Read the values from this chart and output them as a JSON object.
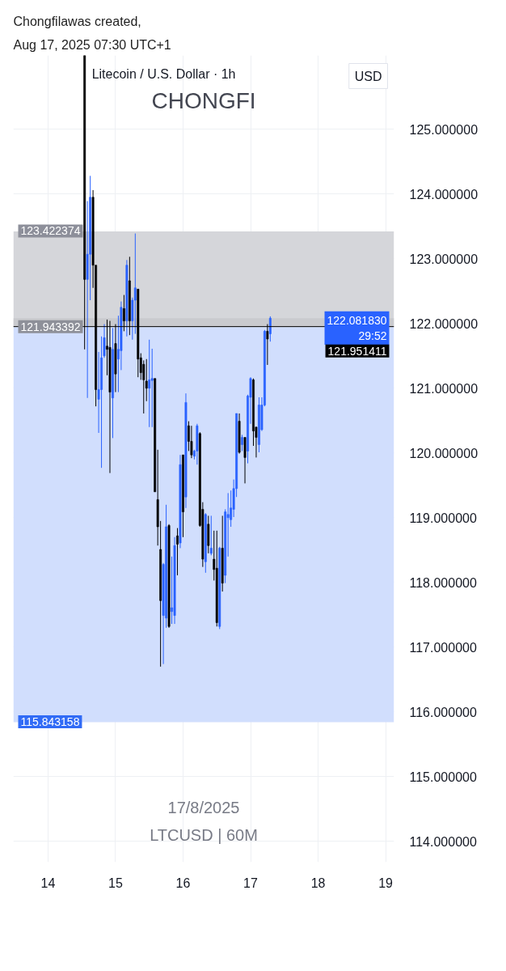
{
  "chart_data": {
    "type": "candlestick",
    "title": "Litecoin / U.S. Dollar · 1h",
    "ylabel": "USD",
    "x": [
      "2025-08-14T13:00",
      "2025-08-14T14:00",
      "2025-08-14T15:00",
      "2025-08-14T16:00",
      "2025-08-14T17:00",
      "2025-08-14T18:00",
      "2025-08-14T19:00",
      "2025-08-14T20:00",
      "2025-08-14T21:00",
      "2025-08-14T22:00",
      "2025-08-14T23:00",
      "2025-08-15T00:00",
      "2025-08-15T01:00",
      "2025-08-15T02:00",
      "2025-08-15T03:00",
      "2025-08-15T04:00",
      "2025-08-15T05:00",
      "2025-08-15T06:00",
      "2025-08-15T07:00",
      "2025-08-15T08:00",
      "2025-08-15T09:00",
      "2025-08-15T10:00",
      "2025-08-15T11:00",
      "2025-08-15T12:00",
      "2025-08-15T13:00",
      "2025-08-15T14:00",
      "2025-08-15T15:00",
      "2025-08-15T16:00",
      "2025-08-15T17:00",
      "2025-08-15T18:00",
      "2025-08-15T19:00",
      "2025-08-15T20:00",
      "2025-08-15T21:00",
      "2025-08-15T22:00",
      "2025-08-15T23:00",
      "2025-08-16T00:00",
      "2025-08-16T01:00",
      "2025-08-16T02:00",
      "2025-08-16T03:00",
      "2025-08-16T04:00",
      "2025-08-16T05:00",
      "2025-08-16T06:00",
      "2025-08-16T07:00",
      "2025-08-16T08:00",
      "2025-08-16T09:00",
      "2025-08-16T10:00",
      "2025-08-16T11:00",
      "2025-08-16T12:00",
      "2025-08-16T13:00",
      "2025-08-16T14:00",
      "2025-08-16T15:00",
      "2025-08-16T16:00",
      "2025-08-16T17:00",
      "2025-08-16T18:00",
      "2025-08-16T19:00",
      "2025-08-16T20:00",
      "2025-08-16T21:00",
      "2025-08-16T22:00",
      "2025-08-16T23:00",
      "2025-08-17T00:00",
      "2025-08-17T01:00",
      "2025-08-17T02:00",
      "2025-08-17T03:00",
      "2025-08-17T04:00",
      "2025-08-17T05:00",
      "2025-08-17T06:00",
      "2025-08-17T07:00"
    ],
    "ohlc": [
      [
        126.14,
        126.14,
        121.6,
        122.68
      ],
      [
        122.68,
        123.89,
        120.85,
        123.07
      ],
      [
        123.07,
        124.28,
        122.36,
        123.95
      ],
      [
        123.95,
        124.06,
        122.55,
        122.9
      ],
      [
        122.9,
        122.9,
        120.72,
        120.98
      ],
      [
        120.83,
        121.56,
        120.31,
        120.98
      ],
      [
        120.98,
        121.8,
        119.77,
        121.47
      ],
      [
        121.5,
        121.99,
        121.47,
        121.78
      ],
      [
        121.65,
        122.06,
        121.2,
        121.6
      ],
      [
        121.63,
        122.04,
        119.69,
        120.94
      ],
      [
        120.85,
        121.93,
        120.23,
        121.6
      ],
      [
        121.69,
        121.99,
        120.94,
        121.22
      ],
      [
        121.45,
        122.12,
        120.94,
        121.6
      ],
      [
        121.58,
        122.34,
        121.28,
        122.25
      ],
      [
        122.23,
        122.44,
        121.88,
        122.04
      ],
      [
        122.04,
        122.98,
        121.8,
        122.9
      ],
      [
        122.66,
        123.03,
        121.82,
        122.04
      ],
      [
        122.04,
        122.4,
        121.75,
        122.36
      ],
      [
        122.36,
        123.39,
        121.84,
        122.55
      ],
      [
        122.53,
        122.53,
        121.17,
        121.45
      ],
      [
        121.47,
        121.54,
        121.13,
        121.24
      ],
      [
        121.37,
        121.43,
        120.61,
        121.13
      ],
      [
        121.11,
        121.45,
        120.8,
        121.0
      ],
      [
        121.0,
        121.75,
        120.4,
        121.13
      ],
      [
        121.12,
        121.61,
        120.4,
        121.15
      ],
      [
        121.15,
        121.15,
        119.4,
        119.4
      ],
      [
        119.28,
        120.05,
        118.57,
        118.86
      ],
      [
        118.51,
        118.95,
        116.7,
        117.72
      ],
      [
        117.49,
        118.3,
        116.74,
        118.28
      ],
      [
        117.45,
        119.2,
        117.3,
        118.86
      ],
      [
        118.88,
        118.9,
        117.3,
        117.32
      ],
      [
        117.55,
        118.4,
        117.36,
        117.61
      ],
      [
        117.49,
        118.7,
        117.36,
        118.57
      ],
      [
        118.72,
        118.84,
        118.11,
        118.59
      ],
      [
        118.61,
        119.97,
        118.53,
        119.82
      ],
      [
        119.97,
        119.97,
        118.7,
        119.09
      ],
      [
        119.32,
        120.92,
        119.15,
        120.78
      ],
      [
        120.42,
        120.49,
        120.03,
        120.18
      ],
      [
        120.18,
        120.42,
        119.92,
        119.97
      ],
      [
        119.95,
        120.05,
        119.9,
        120.03
      ],
      [
        120.03,
        120.45,
        119.82,
        120.42
      ],
      [
        120.3,
        120.32,
        118.86,
        118.88
      ],
      [
        119.13,
        119.24,
        118.24,
        118.36
      ],
      [
        118.32,
        119.07,
        118.15,
        119.05
      ],
      [
        118.9,
        119.03,
        118.45,
        118.57
      ],
      [
        118.45,
        119.03,
        118.42,
        118.53
      ],
      [
        118.36,
        118.8,
        118.03,
        118.2
      ],
      [
        118.22,
        118.8,
        117.32,
        117.38
      ],
      [
        117.32,
        118.55,
        117.28,
        118.53
      ],
      [
        118.53,
        119.03,
        117.86,
        117.99
      ],
      [
        118.11,
        119.13,
        117.99,
        119.09
      ],
      [
        119.0,
        119.38,
        118.4,
        119.05
      ],
      [
        118.97,
        119.42,
        118.86,
        119.15
      ],
      [
        119.13,
        119.59,
        119.01,
        119.45
      ],
      [
        119.45,
        120.61,
        119.32,
        120.61
      ],
      [
        120.49,
        120.61,
        119.99,
        120.01
      ],
      [
        120.13,
        120.28,
        120.03,
        120.24
      ],
      [
        120.24,
        120.24,
        119.53,
        119.93
      ],
      [
        120.03,
        120.9,
        119.84,
        120.88
      ],
      [
        120.86,
        121.17,
        120.45,
        121.15
      ],
      [
        121.13,
        121.15,
        120.11,
        120.34
      ],
      [
        120.4,
        120.4,
        119.93,
        120.24
      ],
      [
        120.13,
        120.86,
        120.01,
        120.74
      ],
      [
        120.36,
        120.86,
        120.34,
        120.74
      ],
      [
        120.74,
        121.9,
        120.72,
        121.88
      ],
      [
        121.88,
        121.99,
        121.36,
        121.76
      ],
      [
        121.84,
        122.11,
        121.72,
        122.08183
      ]
    ],
    "colors": [
      "#000000",
      "#2962ff",
      "#2962ff",
      "#000000",
      "#000000",
      "#2962ff",
      "#2962ff",
      "#2962ff",
      "#000000",
      "#000000",
      "#2962ff",
      "#000000",
      "#2962ff",
      "#2962ff",
      "#000000",
      "#2962ff",
      "#000000",
      "#2962ff",
      "#2962ff",
      "#000000",
      "#000000",
      "#000000",
      "#000000",
      "#2962ff",
      "#2962ff",
      "#000000",
      "#000000",
      "#000000",
      "#2962ff",
      "#2962ff",
      "#000000",
      "#2962ff",
      "#2962ff",
      "#000000",
      "#2962ff",
      "#000000",
      "#2962ff",
      "#000000",
      "#000000",
      "#2962ff",
      "#2962ff",
      "#000000",
      "#000000",
      "#2962ff",
      "#000000",
      "#2962ff",
      "#000000",
      "#000000",
      "#2962ff",
      "#000000",
      "#2962ff",
      "#2962ff",
      "#2962ff",
      "#2962ff",
      "#2962ff",
      "#000000",
      "#2962ff",
      "#000000",
      "#2962ff",
      "#2962ff",
      "#000000",
      "#000000",
      "#2962ff",
      "#2962ff",
      "#2962ff",
      "#000000",
      "#2962ff"
    ],
    "value_labels": [
      null,
      null,
      null,
      null,
      null,
      null,
      null,
      null,
      null,
      null,
      null,
      null,
      null,
      null,
      null,
      null,
      null,
      null,
      null,
      null,
      null,
      null,
      null,
      null,
      null,
      null,
      null,
      null,
      null,
      null,
      null,
      null,
      null,
      null,
      null,
      null,
      null,
      null,
      null,
      null,
      null,
      null,
      null,
      null,
      null,
      null,
      null,
      null,
      null,
      null,
      null,
      null,
      null,
      null,
      null,
      null,
      null,
      null,
      null,
      null,
      null,
      null,
      null,
      null,
      null,
      null,
      "122.081830\n29:52"
    ],
    "xlim": [
      "2025-08-13T11:40",
      "2025-08-19T03:00"
    ],
    "xticks": [
      {
        "value": "2025-08-14",
        "label": "14"
      },
      {
        "value": "2025-08-15",
        "label": "15"
      },
      {
        "value": "2025-08-16",
        "label": "16"
      },
      {
        "value": "2025-08-17",
        "label": "17"
      },
      {
        "value": "2025-08-18",
        "label": "18"
      },
      {
        "value": "2025-08-19",
        "label": "19"
      }
    ],
    "ylim": [
      113.68,
      126.14
    ],
    "yticks": [
      {
        "value": 114,
        "label": "114.000000"
      },
      {
        "value": 115,
        "label": "115.000000"
      },
      {
        "value": 116,
        "label": "116.000000"
      },
      {
        "value": 117,
        "label": "117.000000"
      },
      {
        "value": 118,
        "label": "118.000000"
      },
      {
        "value": 119,
        "label": "119.000000"
      },
      {
        "value": 120,
        "label": "120.000000"
      },
      {
        "value": 121,
        "label": "121.000000"
      },
      {
        "value": 122,
        "label": "122.000000"
      },
      {
        "value": 123,
        "label": "123.000000"
      },
      {
        "value": 124,
        "label": "124.000000"
      },
      {
        "value": 125,
        "label": "125.000000"
      }
    ],
    "grid": true,
    "ref_lines": [
      {
        "axis": "y",
        "value": 121.951411,
        "label": "121.951411",
        "color": "#000000"
      }
    ],
    "bands": [
      {
        "axis": "y",
        "from": 121.943392,
        "to": 123.422374,
        "label": "123.422374",
        "color": "#d5d6da"
      },
      {
        "axis": "y",
        "from": 121.943392,
        "to": 122.08183,
        "label": "121.943392",
        "color": "#c9cace"
      },
      {
        "axis": "y",
        "from": 115.843158,
        "to": 121.943392,
        "label": "115.843158",
        "color": "#d1defd"
      }
    ],
    "annotations": [
      "Chongfilawas created,",
      "Aug 17, 2025 07:30 UTC+1",
      "CHONGFI",
      "17/8/2025",
      "LTCUSD | 60M"
    ]
  }
}
